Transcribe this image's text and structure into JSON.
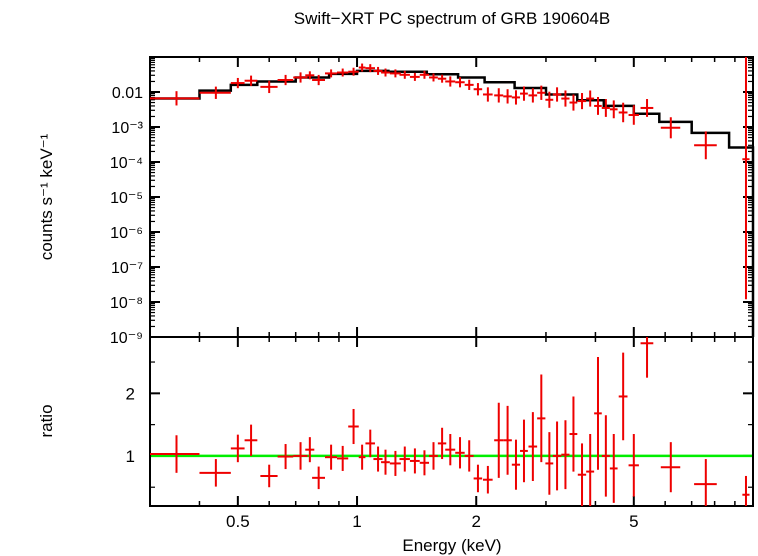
{
  "chart_data": [
    {
      "type": "scatter",
      "panel": "spectrum",
      "title": "Swift−XRT PC spectrum of GRB 190604B",
      "xlabel": "Energy (keV)",
      "ylabel": "counts s⁻¹ keV⁻¹",
      "xscale": "log",
      "yscale": "log",
      "xlim": [
        0.3,
        10
      ],
      "ylim": [
        1e-09,
        0.1
      ],
      "x_ticks": [
        "0.5",
        "1",
        "2",
        "5"
      ],
      "y_ticks": [
        "0.01",
        "10⁻³",
        "10⁻⁴",
        "10⁻⁵",
        "10⁻⁶",
        "10⁻⁷",
        "10⁻⁸",
        "10⁻⁹"
      ],
      "model": {
        "name": "model",
        "color": "#000000",
        "edges": [
          0.3,
          0.4,
          0.48,
          0.56,
          0.7,
          0.85,
          1.0,
          1.2,
          1.5,
          1.8,
          2.1,
          2.5,
          3.0,
          3.6,
          4.2,
          5.0,
          5.8,
          7.0,
          8.7,
          10.0
        ],
        "values": [
          0.0065,
          0.011,
          0.016,
          0.02,
          0.026,
          0.033,
          0.04,
          0.038,
          0.032,
          0.026,
          0.019,
          0.013,
          0.0085,
          0.0058,
          0.004,
          0.0024,
          0.0014,
          0.00068,
          0.00026
        ]
      },
      "series": [
        {
          "name": "data",
          "color": "#ee0000",
          "x": [
            0.35,
            0.44,
            0.5,
            0.54,
            0.6,
            0.66,
            0.72,
            0.76,
            0.8,
            0.86,
            0.92,
            0.98,
            1.03,
            1.08,
            1.13,
            1.18,
            1.25,
            1.32,
            1.4,
            1.48,
            1.56,
            1.64,
            1.72,
            1.82,
            1.92,
            2.02,
            2.14,
            2.28,
            2.4,
            2.52,
            2.64,
            2.78,
            2.92,
            3.06,
            3.2,
            3.36,
            3.52,
            3.7,
            3.88,
            4.06,
            4.25,
            4.45,
            4.7,
            5.0,
            5.4,
            6.2,
            7.6,
            9.6
          ],
          "y": [
            0.0066,
            0.0095,
            0.018,
            0.021,
            0.014,
            0.022,
            0.026,
            0.03,
            0.022,
            0.034,
            0.036,
            0.038,
            0.05,
            0.048,
            0.04,
            0.036,
            0.034,
            0.031,
            0.027,
            0.031,
            0.026,
            0.024,
            0.02,
            0.019,
            0.016,
            0.012,
            0.0085,
            0.008,
            0.0075,
            0.007,
            0.009,
            0.008,
            0.0095,
            0.006,
            0.0085,
            0.0065,
            0.005,
            0.0055,
            0.0065,
            0.004,
            0.0035,
            0.0032,
            0.0026,
            0.0022,
            0.0035,
            0.00095,
            0.0003,
            0.00012
          ],
          "xerr": [
            0.05,
            0.04,
            0.02,
            0.02,
            0.03,
            0.03,
            0.03,
            0.02,
            0.03,
            0.03,
            0.03,
            0.03,
            0.02,
            0.03,
            0.03,
            0.03,
            0.04,
            0.04,
            0.04,
            0.04,
            0.04,
            0.04,
            0.05,
            0.05,
            0.05,
            0.05,
            0.06,
            0.06,
            0.06,
            0.06,
            0.06,
            0.07,
            0.07,
            0.07,
            0.08,
            0.08,
            0.08,
            0.09,
            0.09,
            0.09,
            0.1,
            0.1,
            0.12,
            0.15,
            0.2,
            0.35,
            0.5,
            0.2
          ],
          "yerr_factor": [
            1.6,
            1.5,
            1.4,
            1.4,
            1.5,
            1.4,
            1.4,
            1.3,
            1.4,
            1.3,
            1.3,
            1.3,
            1.3,
            1.3,
            1.3,
            1.3,
            1.3,
            1.3,
            1.3,
            1.3,
            1.3,
            1.3,
            1.4,
            1.4,
            1.4,
            1.5,
            1.6,
            1.6,
            1.6,
            1.6,
            1.6,
            1.6,
            1.6,
            1.7,
            1.6,
            1.7,
            1.7,
            1.7,
            1.7,
            1.8,
            1.8,
            1.8,
            1.9,
            1.9,
            1.8,
            2.0,
            2.5,
            10000
          ]
        }
      ]
    },
    {
      "type": "scatter",
      "panel": "ratio",
      "xlabel": "Energy (keV)",
      "ylabel": "ratio",
      "xscale": "log",
      "xlim": [
        0.3,
        10
      ],
      "ylim": [
        0.2,
        2.9
      ],
      "x_ticks": [
        "0.5",
        "1",
        "2",
        "5"
      ],
      "y_ticks": [
        "1",
        "2"
      ],
      "reference_line": {
        "value": 1,
        "color": "#00ee00"
      },
      "series": [
        {
          "name": "ratio",
          "color": "#ee0000",
          "x": [
            0.35,
            0.44,
            0.5,
            0.54,
            0.6,
            0.66,
            0.72,
            0.76,
            0.8,
            0.86,
            0.92,
            0.98,
            1.03,
            1.08,
            1.13,
            1.18,
            1.25,
            1.32,
            1.4,
            1.48,
            1.56,
            1.64,
            1.72,
            1.82,
            1.92,
            2.02,
            2.14,
            2.28,
            2.4,
            2.52,
            2.64,
            2.78,
            2.92,
            3.06,
            3.2,
            3.36,
            3.52,
            3.7,
            3.88,
            4.06,
            4.25,
            4.45,
            4.7,
            5.0,
            5.4,
            6.2,
            7.6,
            9.6
          ],
          "y": [
            1.03,
            0.73,
            1.12,
            1.25,
            0.68,
            0.99,
            1.0,
            1.1,
            0.65,
            0.98,
            0.96,
            1.47,
            0.98,
            1.2,
            0.95,
            0.9,
            0.88,
            0.95,
            0.92,
            0.89,
            1.0,
            1.2,
            1.1,
            1.05,
            1.0,
            0.64,
            0.62,
            1.25,
            1.25,
            0.86,
            1.08,
            1.15,
            1.6,
            0.88,
            1.0,
            1.02,
            1.35,
            0.7,
            0.75,
            1.68,
            1.0,
            0.8,
            1.95,
            0.85,
            2.8,
            0.82,
            0.55,
            0.38
          ],
          "xerr": [
            0.05,
            0.04,
            0.02,
            0.02,
            0.03,
            0.03,
            0.03,
            0.02,
            0.03,
            0.03,
            0.03,
            0.03,
            0.02,
            0.03,
            0.03,
            0.03,
            0.04,
            0.04,
            0.04,
            0.04,
            0.04,
            0.04,
            0.05,
            0.05,
            0.05,
            0.05,
            0.06,
            0.06,
            0.06,
            0.06,
            0.06,
            0.07,
            0.07,
            0.07,
            0.08,
            0.08,
            0.08,
            0.09,
            0.09,
            0.09,
            0.1,
            0.1,
            0.12,
            0.15,
            0.2,
            0.35,
            0.5,
            0.2
          ],
          "yerr": [
            0.3,
            0.22,
            0.22,
            0.25,
            0.18,
            0.2,
            0.22,
            0.2,
            0.18,
            0.2,
            0.2,
            0.28,
            0.2,
            0.22,
            0.2,
            0.2,
            0.2,
            0.2,
            0.2,
            0.2,
            0.22,
            0.25,
            0.25,
            0.25,
            0.25,
            0.22,
            0.22,
            0.6,
            0.55,
            0.4,
            0.5,
            0.55,
            0.7,
            0.5,
            0.55,
            0.55,
            0.6,
            0.5,
            0.6,
            0.9,
            0.65,
            0.55,
            0.7,
            0.5,
            0.55,
            0.4,
            0.4,
            0.3
          ]
        }
      ]
    }
  ]
}
